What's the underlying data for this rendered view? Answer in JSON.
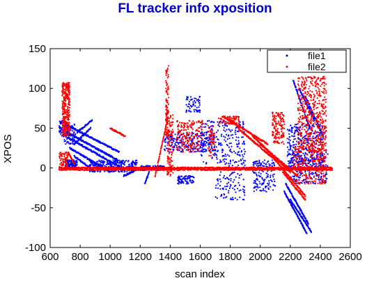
{
  "chart_data": {
    "type": "scatter",
    "title": "FL tracker info xposition",
    "xlabel": "scan index",
    "ylabel": "XPOS",
    "xlim": [
      600,
      2600
    ],
    "ylim": [
      -100,
      150
    ],
    "xticks": [
      600,
      800,
      1000,
      1200,
      1400,
      1600,
      1800,
      2000,
      2200,
      2400,
      2600
    ],
    "yticks": [
      -100,
      -50,
      0,
      50,
      100,
      150
    ],
    "grid": false,
    "legend_position": "top-right",
    "series": [
      {
        "name": "file1",
        "color": "#0000ff",
        "marker": "dot",
        "clusters": [
          {
            "x": [
              660,
              700
            ],
            "y": [
              40,
              60
            ],
            "n": 60
          },
          {
            "x": [
              700,
              780
            ],
            "y": [
              0,
              10
            ],
            "n": 140
          },
          {
            "x": [
              690,
              770
            ],
            "y": [
              30,
              55
            ],
            "n": 90
          },
          {
            "x": [
              860,
              1180
            ],
            "y": [
              -5,
              10
            ],
            "n": 320
          },
          {
            "x": [
              1200,
              1360
            ],
            "y": [
              -3,
              3
            ],
            "n": 160
          },
          {
            "x": [
              1360,
              1700
            ],
            "y": [
              20,
              45
            ],
            "n": 260
          },
          {
            "x": [
              1450,
              1560
            ],
            "y": [
              -20,
              -10
            ],
            "n": 80
          },
          {
            "x": [
              1500,
              1600
            ],
            "y": [
              70,
              90
            ],
            "n": 60
          },
          {
            "x": [
              1600,
              1900
            ],
            "y": [
              0,
              60
            ],
            "n": 240
          },
          {
            "x": [
              1700,
              1900
            ],
            "y": [
              -40,
              -5
            ],
            "n": 90
          },
          {
            "x": [
              1950,
              2100
            ],
            "y": [
              -30,
              10
            ],
            "n": 150
          },
          {
            "x": [
              2180,
              2420
            ],
            "y": [
              0,
              55
            ],
            "n": 320
          },
          {
            "x": [
              2200,
              2450
            ],
            "y": [
              -20,
              20
            ],
            "n": 220
          }
        ],
        "lines": [
          {
            "x": [
              700,
              1060
            ],
            "y": [
              55,
              20
            ],
            "n": 160
          },
          {
            "x": [
              710,
              1050
            ],
            "y": [
              45,
              10
            ],
            "n": 150
          },
          {
            "x": [
              720,
              1030
            ],
            "y": [
              38,
              5
            ],
            "n": 140
          },
          {
            "x": [
              730,
              1000
            ],
            "y": [
              25,
              -5
            ],
            "n": 120
          },
          {
            "x": [
              760,
              900
            ],
            "y": [
              15,
              -5
            ],
            "n": 70
          },
          {
            "x": [
              760,
              870
            ],
            "y": [
              30,
              50
            ],
            "n": 50
          },
          {
            "x": [
              780,
              880
            ],
            "y": [
              45,
              60
            ],
            "n": 45
          },
          {
            "x": [
              1090,
              1200
            ],
            "y": [
              -10,
              0
            ],
            "n": 60
          },
          {
            "x": [
              1230,
              1260
            ],
            "y": [
              -20,
              -5
            ],
            "n": 20
          },
          {
            "x": [
              2160,
              2310
            ],
            "y": [
              -30,
              -82
            ],
            "n": 110
          },
          {
            "x": [
              2170,
              2320
            ],
            "y": [
              -20,
              -70
            ],
            "n": 100
          },
          {
            "x": [
              2200,
              2340
            ],
            "y": [
              -40,
              -80
            ],
            "n": 80
          },
          {
            "x": [
              2220,
              2330
            ],
            "y": [
              110,
              50
            ],
            "n": 70
          },
          {
            "x": [
              2260,
              2360
            ],
            "y": [
              100,
              60
            ],
            "n": 60
          },
          {
            "x": [
              2300,
              2420
            ],
            "y": [
              90,
              40
            ],
            "n": 60
          }
        ]
      },
      {
        "name": "file2",
        "color": "#ff0000",
        "marker": "dot",
        "clusters": [
          {
            "x": [
              680,
              730
            ],
            "y": [
              40,
              108
            ],
            "n": 320
          },
          {
            "x": [
              660,
              720
            ],
            "y": [
              0,
              20
            ],
            "n": 80
          },
          {
            "x": [
              1370,
              1390
            ],
            "y": [
              40,
              130
            ],
            "n": 100
          },
          {
            "x": [
              1380,
              1420
            ],
            "y": [
              -10,
              70
            ],
            "n": 120
          },
          {
            "x": [
              1440,
              1620
            ],
            "y": [
              20,
              60
            ],
            "n": 200
          },
          {
            "x": [
              1650,
              1700
            ],
            "y": [
              15,
              55
            ],
            "n": 60
          },
          {
            "x": [
              1720,
              1860
            ],
            "y": [
              55,
              65
            ],
            "n": 80
          },
          {
            "x": [
              2080,
              2160
            ],
            "y": [
              30,
              70
            ],
            "n": 140
          },
          {
            "x": [
              2250,
              2440
            ],
            "y": [
              20,
              115
            ],
            "n": 520
          },
          {
            "x": [
              2220,
              2440
            ],
            "y": [
              -20,
              30
            ],
            "n": 260
          }
        ],
        "lines": [
          {
            "x": [
              660,
              2480
            ],
            "y": [
              0,
              0
            ],
            "n": 700
          },
          {
            "x": [
              660,
              2480
            ],
            "y": [
              -2,
              -2
            ],
            "n": 500
          },
          {
            "x": [
              1750,
              2050
            ],
            "y": [
              65,
              30
            ],
            "n": 140
          },
          {
            "x": [
              1850,
              2100
            ],
            "y": [
              50,
              10
            ],
            "n": 120
          },
          {
            "x": [
              1950,
              2200
            ],
            "y": [
              40,
              -5
            ],
            "n": 120
          },
          {
            "x": [
              2000,
              2250
            ],
            "y": [
              30,
              -10
            ],
            "n": 120
          },
          {
            "x": [
              2100,
              2300
            ],
            "y": [
              10,
              -35
            ],
            "n": 100
          },
          {
            "x": [
              2150,
              2300
            ],
            "y": [
              -5,
              -40
            ],
            "n": 80
          },
          {
            "x": [
              1000,
              1100
            ],
            "y": [
              50,
              40
            ],
            "n": 40
          },
          {
            "x": [
              1300,
              1380
            ],
            "y": [
              -10,
              60
            ],
            "n": 60
          },
          {
            "x": [
              720,
              760
            ],
            "y": [
              20,
              5
            ],
            "n": 30
          }
        ]
      }
    ]
  }
}
